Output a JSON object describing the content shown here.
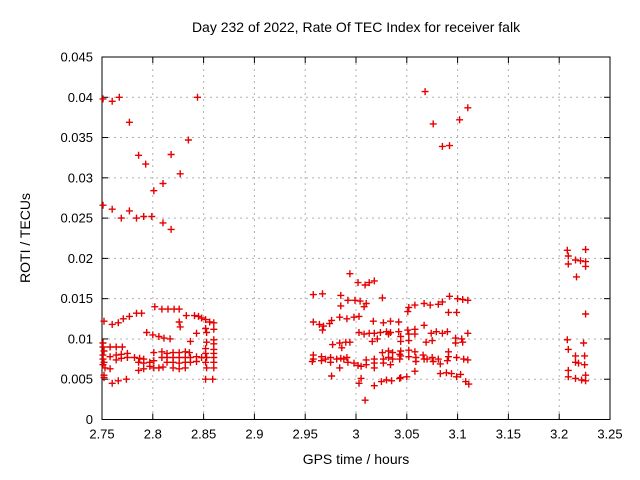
{
  "chart_data": {
    "type": "scatter",
    "title": "Day 232 of 2022, Rate Of TEC Index for receiver falk",
    "xlabel": "GPS time / hours",
    "ylabel": "ROTI / TECUs",
    "xlim": [
      2.75,
      3.25
    ],
    "ylim": [
      0,
      0.045
    ],
    "xticks": [
      2.75,
      2.8,
      2.85,
      2.9,
      2.95,
      3,
      3.05,
      3.1,
      3.15,
      3.2,
      3.25
    ],
    "xtick_labels": [
      "2.75",
      "2.8",
      "2.85",
      "2.9",
      "2.95",
      "3",
      "3.05",
      "3.1",
      "3.15",
      "3.2",
      "3.25"
    ],
    "yticks": [
      0,
      0.005,
      0.01,
      0.015,
      0.02,
      0.025,
      0.03,
      0.035,
      0.04,
      0.045
    ],
    "ytick_labels": [
      "0",
      "0.005",
      "0.01",
      "0.015",
      "0.02",
      "0.025",
      "0.03",
      "0.035",
      "0.04",
      "0.045"
    ],
    "grid": true,
    "legend": "none",
    "marker": "plus",
    "marker_color": "#e60000",
    "points": [
      [
        2.751,
        0.0398
      ],
      [
        2.76,
        0.0395
      ],
      [
        2.767,
        0.04
      ],
      [
        2.777,
        0.0369
      ],
      [
        2.844,
        0.04
      ],
      [
        2.835,
        0.0347
      ],
      [
        2.786,
        0.0328
      ],
      [
        2.793,
        0.0317
      ],
      [
        2.818,
        0.0329
      ],
      [
        2.827,
        0.0305
      ],
      [
        2.81,
        0.0293
      ],
      [
        2.801,
        0.0284
      ],
      [
        2.751,
        0.0266
      ],
      [
        2.76,
        0.0261
      ],
      [
        2.777,
        0.0259
      ],
      [
        2.769,
        0.025
      ],
      [
        2.784,
        0.025
      ],
      [
        2.791,
        0.0252
      ],
      [
        2.799,
        0.0252
      ],
      [
        2.81,
        0.0244
      ],
      [
        2.818,
        0.0236
      ],
      [
        3.068,
        0.0407
      ],
      [
        3.11,
        0.0387
      ],
      [
        3.102,
        0.0372
      ],
      [
        3.076,
        0.0367
      ],
      [
        3.085,
        0.0339
      ],
      [
        3.092,
        0.034
      ],
      [
        2.802,
        0.014
      ],
      [
        2.809,
        0.0137
      ],
      [
        2.815,
        0.0137
      ],
      [
        2.821,
        0.0137
      ],
      [
        2.826,
        0.0137
      ],
      [
        2.833,
        0.0129
      ],
      [
        2.841,
        0.0129
      ],
      [
        2.845,
        0.0128
      ],
      [
        2.848,
        0.0126
      ],
      [
        2.784,
        0.0132
      ],
      [
        2.789,
        0.0132
      ],
      [
        2.777,
        0.0128
      ],
      [
        2.771,
        0.0125
      ],
      [
        2.766,
        0.012
      ],
      [
        2.76,
        0.0118
      ],
      [
        2.752,
        0.0122
      ],
      [
        2.826,
        0.0121
      ],
      [
        2.827,
        0.0115
      ],
      [
        2.794,
        0.0108
      ],
      [
        2.8,
        0.0105
      ],
      [
        2.806,
        0.0103
      ],
      [
        2.811,
        0.0101
      ],
      [
        2.817,
        0.01
      ],
      [
        2.843,
        0.0107
      ],
      [
        2.837,
        0.0097
      ],
      [
        2.852,
        0.0124
      ],
      [
        2.856,
        0.0121
      ],
      [
        2.86,
        0.012
      ],
      [
        2.852,
        0.0113
      ],
      [
        2.86,
        0.0112
      ],
      [
        2.853,
        0.0108
      ],
      [
        2.86,
        0.0099
      ],
      [
        2.853,
        0.0096
      ],
      [
        2.86,
        0.0094
      ],
      [
        2.751,
        0.0095
      ],
      [
        2.751,
        0.009
      ],
      [
        2.752,
        0.0085
      ],
      [
        2.751,
        0.008
      ],
      [
        2.751,
        0.0075
      ],
      [
        2.752,
        0.0071
      ],
      [
        2.751,
        0.0068
      ],
      [
        2.753,
        0.0064
      ],
      [
        2.758,
        0.0063
      ],
      [
        2.752,
        0.0055
      ],
      [
        2.758,
        0.009
      ],
      [
        2.764,
        0.009
      ],
      [
        2.77,
        0.009
      ],
      [
        2.758,
        0.0078
      ],
      [
        2.764,
        0.008
      ],
      [
        2.769,
        0.0081
      ],
      [
        2.775,
        0.0082
      ],
      [
        2.769,
        0.0076
      ],
      [
        2.764,
        0.0074
      ],
      [
        2.775,
        0.0077
      ],
      [
        2.782,
        0.0077
      ],
      [
        2.787,
        0.0076
      ],
      [
        2.791,
        0.0075
      ],
      [
        2.786,
        0.0071
      ],
      [
        2.791,
        0.007
      ],
      [
        2.797,
        0.0071
      ],
      [
        2.801,
        0.0073
      ],
      [
        2.797,
        0.0066
      ],
      [
        2.801,
        0.0064
      ],
      [
        2.791,
        0.0063
      ],
      [
        2.786,
        0.0061
      ],
      [
        2.806,
        0.0064
      ],
      [
        2.81,
        0.0065
      ],
      [
        2.801,
        0.0083
      ],
      [
        2.809,
        0.0084
      ],
      [
        2.814,
        0.0082
      ],
      [
        2.82,
        0.0083
      ],
      [
        2.826,
        0.0083
      ],
      [
        2.832,
        0.0084
      ],
      [
        2.836,
        0.0083
      ],
      [
        2.809,
        0.0077
      ],
      [
        2.814,
        0.0077
      ],
      [
        2.82,
        0.0077
      ],
      [
        2.826,
        0.0077
      ],
      [
        2.832,
        0.0077
      ],
      [
        2.837,
        0.0077
      ],
      [
        2.843,
        0.0078
      ],
      [
        2.848,
        0.0077
      ],
      [
        2.814,
        0.0071
      ],
      [
        2.82,
        0.0071
      ],
      [
        2.826,
        0.007
      ],
      [
        2.832,
        0.0071
      ],
      [
        2.837,
        0.0071
      ],
      [
        2.843,
        0.0072
      ],
      [
        2.82,
        0.0064
      ],
      [
        2.826,
        0.0063
      ],
      [
        2.832,
        0.0064
      ],
      [
        2.852,
        0.0088
      ],
      [
        2.86,
        0.0087
      ],
      [
        2.852,
        0.0082
      ],
      [
        2.86,
        0.0082
      ],
      [
        2.853,
        0.0077
      ],
      [
        2.86,
        0.0077
      ],
      [
        2.852,
        0.0071
      ],
      [
        2.86,
        0.0071
      ],
      [
        2.853,
        0.0064
      ],
      [
        2.86,
        0.0064
      ],
      [
        2.76,
        0.0045
      ],
      [
        2.766,
        0.0048
      ],
      [
        2.774,
        0.005
      ],
      [
        2.752,
        0.0052
      ],
      [
        2.852,
        0.005
      ],
      [
        2.859,
        0.005
      ],
      [
        2.994,
        0.0181
      ],
      [
        3.002,
        0.017
      ],
      [
        3.009,
        0.0167
      ],
      [
        3.013,
        0.017
      ],
      [
        3.018,
        0.0172
      ],
      [
        2.958,
        0.0155
      ],
      [
        2.967,
        0.0156
      ],
      [
        2.985,
        0.0154
      ],
      [
        2.992,
        0.0148
      ],
      [
        2.985,
        0.0141
      ],
      [
        2.999,
        0.0148
      ],
      [
        3.004,
        0.0147
      ],
      [
        3.01,
        0.0144
      ],
      [
        3.008,
        0.014
      ],
      [
        3.026,
        0.0151
      ],
      [
        2.984,
        0.0127
      ],
      [
        2.991,
        0.0125
      ],
      [
        2.998,
        0.0127
      ],
      [
        3.003,
        0.0128
      ],
      [
        2.958,
        0.0121
      ],
      [
        2.964,
        0.0118
      ],
      [
        2.968,
        0.0116
      ],
      [
        2.974,
        0.0119
      ],
      [
        2.976,
        0.0123
      ],
      [
        2.967,
        0.0111
      ],
      [
        3.017,
        0.0122
      ],
      [
        3.027,
        0.012
      ],
      [
        3.034,
        0.0122
      ],
      [
        3.042,
        0.0121
      ],
      [
        3.003,
        0.0108
      ],
      [
        3.008,
        0.0106
      ],
      [
        3.013,
        0.0107
      ],
      [
        3.018,
        0.0107
      ],
      [
        3.024,
        0.0108
      ],
      [
        3.03,
        0.0109
      ],
      [
        3.034,
        0.0108
      ],
      [
        3.032,
        0.0106
      ],
      [
        3.042,
        0.0109
      ],
      [
        3.016,
        0.0097
      ],
      [
        3.021,
        0.01
      ],
      [
        2.977,
        0.0093
      ],
      [
        2.984,
        0.0095
      ],
      [
        2.99,
        0.0096
      ],
      [
        2.994,
        0.0096
      ],
      [
        2.986,
        0.0089
      ],
      [
        2.958,
        0.008
      ],
      [
        2.958,
        0.0075
      ],
      [
        2.957,
        0.0072
      ],
      [
        2.966,
        0.0078
      ],
      [
        2.966,
        0.0073
      ],
      [
        2.97,
        0.0075
      ],
      [
        2.975,
        0.0077
      ],
      [
        2.975,
        0.0071
      ],
      [
        2.981,
        0.0075
      ],
      [
        2.985,
        0.0076
      ],
      [
        2.988,
        0.0075
      ],
      [
        2.991,
        0.0077
      ],
      [
        2.992,
        0.0071
      ],
      [
        2.998,
        0.007
      ],
      [
        2.984,
        0.0064
      ],
      [
        3.002,
        0.0067
      ],
      [
        3.005,
        0.0066
      ],
      [
        3.01,
        0.0068
      ],
      [
        3.01,
        0.0074
      ],
      [
        3.018,
        0.0075
      ],
      [
        3.018,
        0.007
      ],
      [
        3.018,
        0.0064
      ],
      [
        3.026,
        0.0083
      ],
      [
        3.032,
        0.0085
      ],
      [
        3.036,
        0.0083
      ],
      [
        3.027,
        0.0075
      ],
      [
        3.032,
        0.0077
      ],
      [
        3.036,
        0.0075
      ],
      [
        3.027,
        0.007
      ],
      [
        3.034,
        0.0068
      ],
      [
        3.043,
        0.0081
      ],
      [
        3.043,
        0.0075
      ],
      [
        2.976,
        0.0054
      ],
      [
        3.003,
        0.0045
      ],
      [
        3.005,
        0.0051
      ],
      [
        3.018,
        0.0042
      ],
      [
        3.025,
        0.0047
      ],
      [
        3.03,
        0.0049
      ],
      [
        3.035,
        0.0048
      ],
      [
        3.043,
        0.0051
      ],
      [
        3.009,
        0.0024
      ],
      [
        3.092,
        0.0153
      ],
      [
        3.1,
        0.015
      ],
      [
        3.105,
        0.0149
      ],
      [
        3.11,
        0.0148
      ],
      [
        3.052,
        0.0139
      ],
      [
        3.058,
        0.0142
      ],
      [
        3.067,
        0.0144
      ],
      [
        3.073,
        0.0142
      ],
      [
        3.081,
        0.0143
      ],
      [
        3.085,
        0.0146
      ],
      [
        3.051,
        0.0134
      ],
      [
        3.091,
        0.0133
      ],
      [
        3.099,
        0.0133
      ],
      [
        3.051,
        0.0111
      ],
      [
        3.058,
        0.0112
      ],
      [
        3.067,
        0.0117
      ],
      [
        3.052,
        0.0106
      ],
      [
        3.044,
        0.0103
      ],
      [
        3.044,
        0.0097
      ],
      [
        3.052,
        0.0098
      ],
      [
        3.058,
        0.0106
      ],
      [
        3.074,
        0.0107
      ],
      [
        3.079,
        0.0109
      ],
      [
        3.085,
        0.0107
      ],
      [
        3.09,
        0.0109
      ],
      [
        3.069,
        0.0096
      ],
      [
        3.075,
        0.0098
      ],
      [
        3.098,
        0.0101
      ],
      [
        3.104,
        0.01
      ],
      [
        3.098,
        0.0095
      ],
      [
        3.105,
        0.0096
      ],
      [
        3.11,
        0.0107
      ],
      [
        3.044,
        0.0085
      ],
      [
        3.052,
        0.0086
      ],
      [
        3.058,
        0.0084
      ],
      [
        3.044,
        0.0079
      ],
      [
        3.052,
        0.0078
      ],
      [
        3.059,
        0.0077
      ],
      [
        3.059,
        0.0072
      ],
      [
        3.066,
        0.008
      ],
      [
        3.067,
        0.0075
      ],
      [
        3.07,
        0.0075
      ],
      [
        3.075,
        0.0077
      ],
      [
        3.076,
        0.0072
      ],
      [
        3.081,
        0.0075
      ],
      [
        3.083,
        0.0069
      ],
      [
        3.09,
        0.0073
      ],
      [
        3.091,
        0.0084
      ],
      [
        3.091,
        0.0078
      ],
      [
        3.099,
        0.0077
      ],
      [
        3.106,
        0.0075
      ],
      [
        3.11,
        0.0074
      ],
      [
        3.058,
        0.006
      ],
      [
        3.044,
        0.0052
      ],
      [
        3.05,
        0.0053
      ],
      [
        3.083,
        0.0057
      ],
      [
        3.089,
        0.0058
      ],
      [
        3.094,
        0.0057
      ],
      [
        3.099,
        0.0053
      ],
      [
        3.103,
        0.0056
      ],
      [
        3.108,
        0.0047
      ],
      [
        3.111,
        0.0044
      ],
      [
        3.208,
        0.021
      ],
      [
        3.226,
        0.0211
      ],
      [
        3.209,
        0.0203
      ],
      [
        3.216,
        0.0198
      ],
      [
        3.221,
        0.0197
      ],
      [
        3.226,
        0.0196
      ],
      [
        3.209,
        0.0193
      ],
      [
        3.226,
        0.019
      ],
      [
        3.217,
        0.0177
      ],
      [
        3.226,
        0.0131
      ],
      [
        3.208,
        0.0099
      ],
      [
        3.224,
        0.0095
      ],
      [
        3.209,
        0.0087
      ],
      [
        3.216,
        0.0079
      ],
      [
        3.225,
        0.0079
      ],
      [
        3.216,
        0.0071
      ],
      [
        3.219,
        0.007
      ],
      [
        3.225,
        0.0068
      ],
      [
        3.209,
        0.0061
      ],
      [
        3.209,
        0.0053
      ],
      [
        3.216,
        0.0051
      ],
      [
        3.222,
        0.0049
      ],
      [
        3.226,
        0.0055
      ],
      [
        3.226,
        0.0048
      ]
    ]
  }
}
